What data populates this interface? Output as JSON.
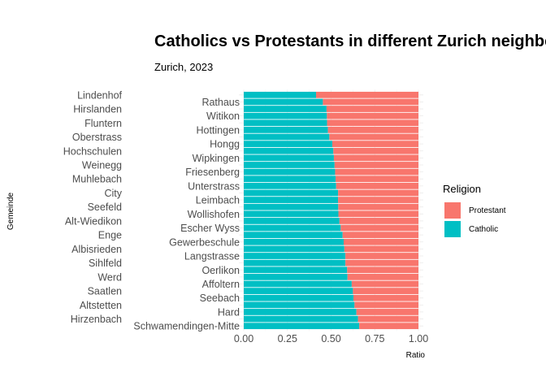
{
  "chart_data": {
    "type": "bar",
    "orientation": "horizontal",
    "stacked": true,
    "title": "Catholics vs Protestants in different Zurich neighbo",
    "subtitle": "Zurich, 2023",
    "xlabel": "Ratio",
    "ylabel": "Gemeinde",
    "xlim": [
      0,
      1
    ],
    "xticks": [
      "0.00",
      "0.25",
      "0.50",
      "0.75",
      "1.00"
    ],
    "xtick_values": [
      0,
      0.25,
      0.5,
      0.75,
      1
    ],
    "legend": {
      "title": "Religion",
      "position": "right",
      "entries": [
        {
          "name": "Protestant",
          "color": "#F8766D"
        },
        {
          "name": "Catholic",
          "color": "#00BFC4"
        }
      ]
    },
    "categories": [
      "Lindenhof",
      "Rathaus",
      "Hirslanden",
      "Witikon",
      "Fluntern",
      "Hottingen",
      "Oberstrass",
      "Hongg",
      "Hochschulen",
      "Wipkingen",
      "Weinegg",
      "Friesenberg",
      "Muhlebach",
      "Unterstrass",
      "City",
      "Leimbach",
      "Seefeld",
      "Wollishofen",
      "Alt-Wiedikon",
      "Escher Wyss",
      "Enge",
      "Gewerbeschule",
      "Albisrieden",
      "Langstrasse",
      "Sihlfeld",
      "Oerlikon",
      "Werd",
      "Affoltern",
      "Saatlen",
      "Seebach",
      "Altstetten",
      "Hard",
      "Hirzenbach",
      "Schwamendingen-Mitte"
    ],
    "series": [
      {
        "name": "Catholic",
        "values": [
          0.414,
          0.453,
          0.474,
          0.476,
          0.477,
          0.482,
          0.49,
          0.507,
          0.513,
          0.516,
          0.52,
          0.523,
          0.526,
          0.529,
          0.54,
          0.54,
          0.541,
          0.542,
          0.548,
          0.555,
          0.566,
          0.572,
          0.576,
          0.582,
          0.582,
          0.592,
          0.594,
          0.618,
          0.625,
          0.628,
          0.634,
          0.645,
          0.654,
          0.661
        ]
      },
      {
        "name": "Protestant",
        "values": [
          0.586,
          0.547,
          0.526,
          0.524,
          0.523,
          0.518,
          0.51,
          0.493,
          0.487,
          0.484,
          0.48,
          0.477,
          0.474,
          0.471,
          0.46,
          0.46,
          0.459,
          0.458,
          0.452,
          0.445,
          0.434,
          0.428,
          0.424,
          0.418,
          0.418,
          0.408,
          0.406,
          0.382,
          0.375,
          0.372,
          0.366,
          0.355,
          0.346,
          0.339
        ]
      }
    ]
  }
}
